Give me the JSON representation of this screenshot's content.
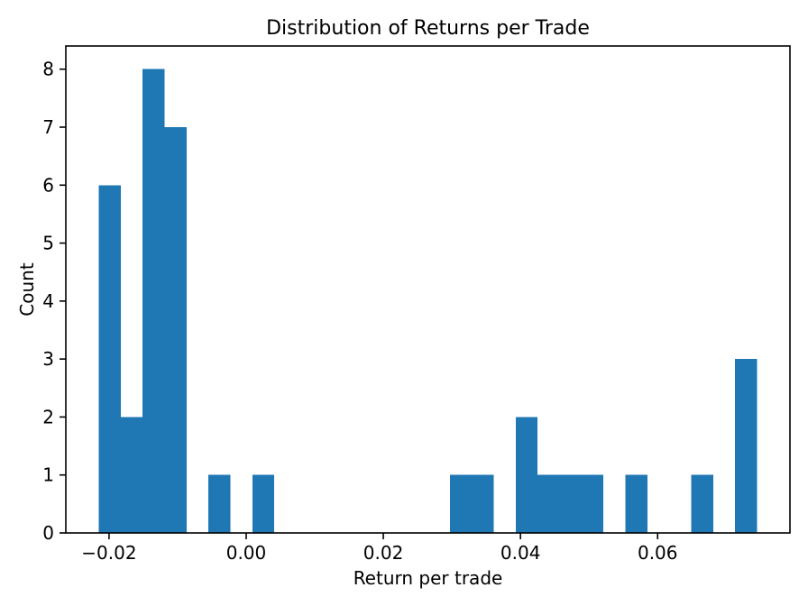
{
  "chart_data": {
    "type": "bar",
    "subtype": "histogram",
    "title": "Distribution of Returns per Trade",
    "xlabel": "Return per trade",
    "ylabel": "Count",
    "bar_color": "#1f77b4",
    "background_color": "#ffffff",
    "axis_color": "#000000",
    "grid": false,
    "legend_position": "none",
    "n_bins": 30,
    "bin_width": 0.0032,
    "bin_edges": [
      -0.0215,
      -0.0183,
      -0.0151,
      -0.0119,
      -0.0087,
      -0.0055,
      -0.0023,
      0.0009,
      0.0041,
      0.0073,
      0.0105,
      0.0137,
      0.0169,
      0.0201,
      0.0233,
      0.0265,
      0.0297,
      0.0329,
      0.0361,
      0.0393,
      0.0425,
      0.0457,
      0.0489,
      0.0521,
      0.0553,
      0.0585,
      0.0617,
      0.0649,
      0.0681,
      0.0713,
      0.0745
    ],
    "counts": [
      6,
      2,
      8,
      7,
      0,
      1,
      0,
      1,
      0,
      0,
      0,
      0,
      0,
      0,
      0,
      0,
      1,
      1,
      0,
      2,
      1,
      1,
      1,
      0,
      1,
      0,
      0,
      1,
      0,
      3
    ],
    "xlim": [
      -0.0263,
      0.0793
    ],
    "ylim": [
      0,
      8.4
    ],
    "xticks": [
      -0.02,
      0,
      0.02,
      0.04,
      0.06
    ],
    "xtick_labels": [
      "−0.02",
      "0.00",
      "0.02",
      "0.04",
      "0.06"
    ],
    "yticks": [
      0,
      1,
      2,
      3,
      4,
      5,
      6,
      7,
      8
    ],
    "ytick_labels": [
      "0",
      "1",
      "2",
      "3",
      "4",
      "5",
      "6",
      "7",
      "8"
    ]
  }
}
